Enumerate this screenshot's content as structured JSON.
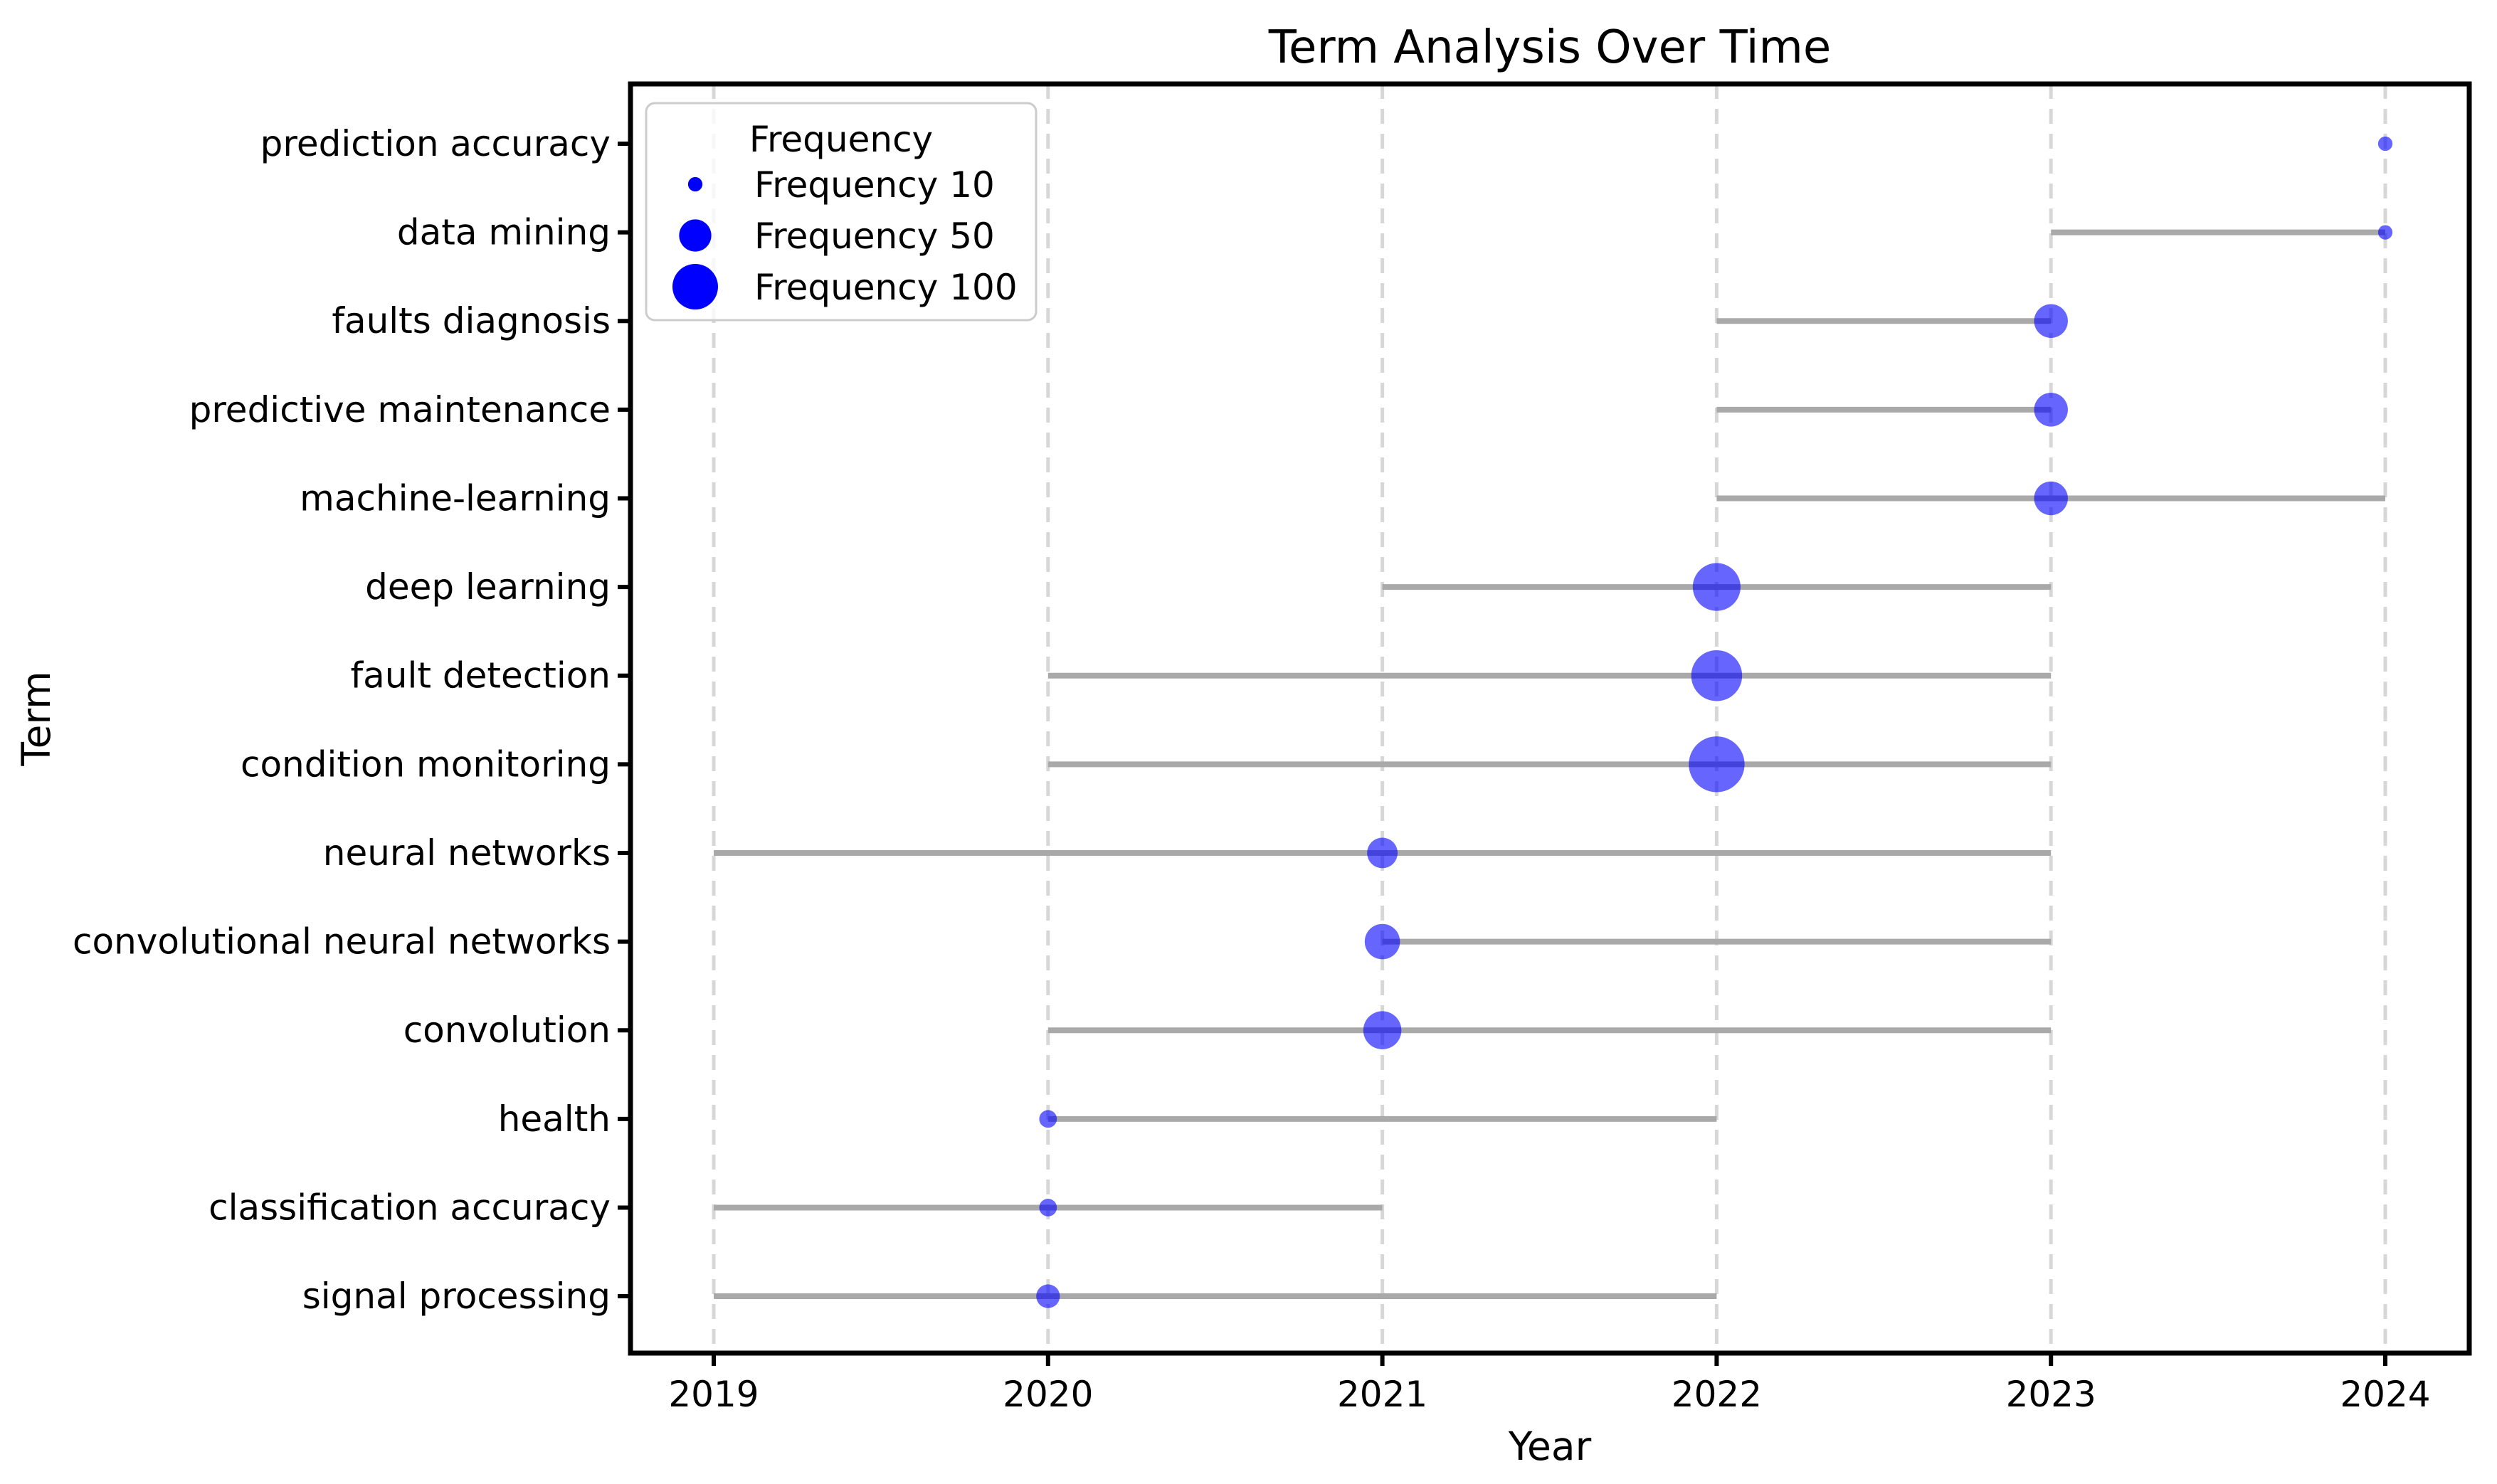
{
  "chart_data": {
    "type": "scatter",
    "title": "Term Analysis Over Time",
    "xlabel": "Year",
    "ylabel": "Term",
    "x_ticks": [
      2019,
      2020,
      2021,
      2022,
      2023,
      2024
    ],
    "xlim": [
      2018.75,
      2024.25
    ],
    "grid": "vertical-dashed",
    "legend": {
      "title": "Frequency",
      "position": "upper-left",
      "marker_color": "#0000ff",
      "entries": [
        {
          "label": "Frequency 10",
          "frequency": 10
        },
        {
          "label": "Frequency 50",
          "frequency": 50
        },
        {
          "label": "Frequency 100",
          "frequency": 100
        }
      ]
    },
    "series": [
      {
        "term": "prediction accuracy",
        "dot_year": 2024,
        "frequency": 10,
        "span_start": 2024,
        "span_end": 2024
      },
      {
        "term": "data mining",
        "dot_year": 2024,
        "frequency": 10,
        "span_start": 2023,
        "span_end": 2024
      },
      {
        "term": "faults diagnosis",
        "dot_year": 2023,
        "frequency": 55,
        "span_start": 2022,
        "span_end": 2023
      },
      {
        "term": "predictive maintenance",
        "dot_year": 2023,
        "frequency": 55,
        "span_start": 2022,
        "span_end": 2023
      },
      {
        "term": "machine-learning",
        "dot_year": 2023,
        "frequency": 55,
        "span_start": 2022,
        "span_end": 2024
      },
      {
        "term": "deep learning",
        "dot_year": 2022,
        "frequency": 110,
        "span_start": 2021,
        "span_end": 2023
      },
      {
        "term": "fault detection",
        "dot_year": 2022,
        "frequency": 125,
        "span_start": 2020,
        "span_end": 2023
      },
      {
        "term": "condition monitoring",
        "dot_year": 2022,
        "frequency": 150,
        "span_start": 2020,
        "span_end": 2023
      },
      {
        "term": "neural networks",
        "dot_year": 2021,
        "frequency": 45,
        "span_start": 2019,
        "span_end": 2023
      },
      {
        "term": "convolutional neural networks",
        "dot_year": 2021,
        "frequency": 60,
        "span_start": 2021,
        "span_end": 2023
      },
      {
        "term": "convolution",
        "dot_year": 2021,
        "frequency": 70,
        "span_start": 2020,
        "span_end": 2023
      },
      {
        "term": "health",
        "dot_year": 2020,
        "frequency": 15,
        "span_start": 2020,
        "span_end": 2022
      },
      {
        "term": "classification accuracy",
        "dot_year": 2020,
        "frequency": 15,
        "span_start": 2019,
        "span_end": 2021
      },
      {
        "term": "signal processing",
        "dot_year": 2020,
        "frequency": 27,
        "span_start": 2019,
        "span_end": 2022
      }
    ],
    "colors": {
      "dot": "#0000ff",
      "dot_opacity": 0.6,
      "range_line": "#a9a9a9",
      "gridline": "#d7d7d7",
      "legend_border": "#cccccc",
      "spine": "#000000"
    }
  }
}
